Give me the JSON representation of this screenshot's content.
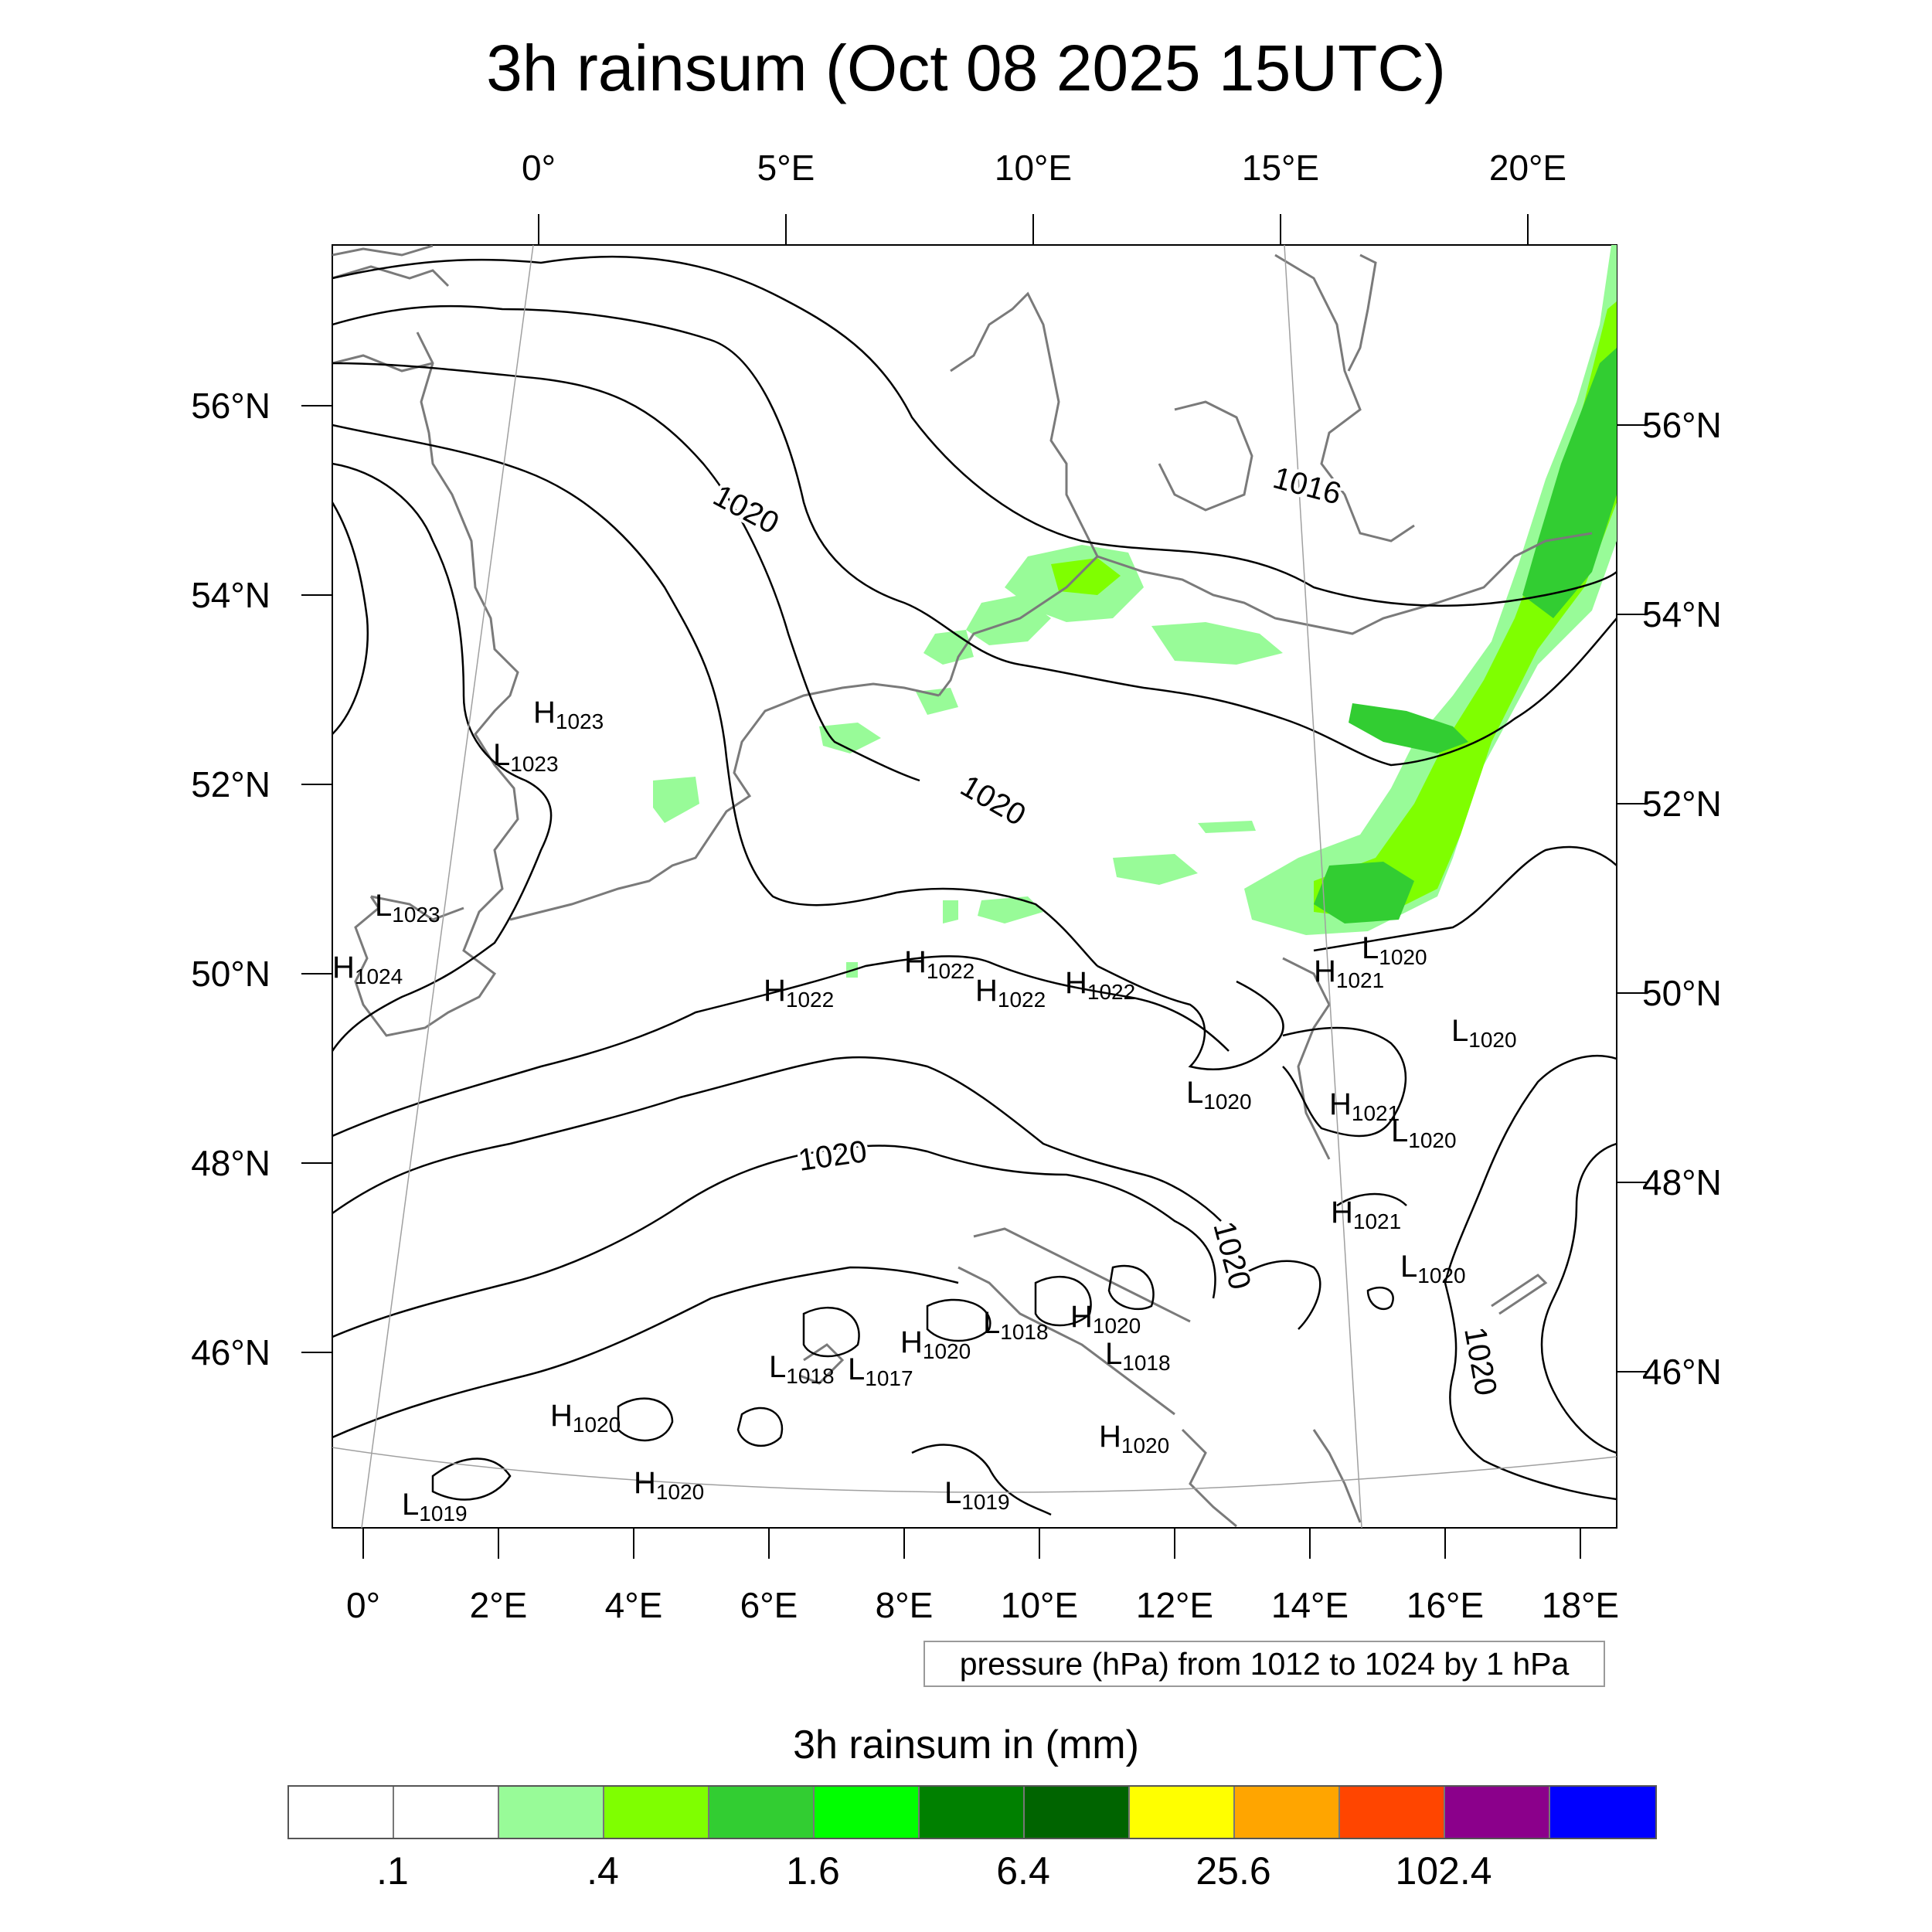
{
  "title": "3h rainsum (Oct 08 2025 15UTC)",
  "axes": {
    "top_lon": [
      "0°",
      "5°E",
      "10°E",
      "15°E",
      "20°E"
    ],
    "left_lat": [
      "56°N",
      "54°N",
      "52°N",
      "50°N",
      "48°N",
      "46°N"
    ],
    "right_lat": [
      "56°N",
      "54°N",
      "52°N",
      "50°N",
      "48°N",
      "46°N"
    ],
    "bottom_lon": [
      "0°",
      "2°E",
      "4°E",
      "6°E",
      "8°E",
      "10°E",
      "12°E",
      "14°E",
      "16°E",
      "18°E"
    ]
  },
  "pressure_note": "pressure (hPa) from 1012 to 1024 by 1 hPa",
  "isobar_labels": [
    "1020",
    "1016",
    "1020",
    "1020",
    "1020",
    "1020"
  ],
  "pressure_centers": [
    {
      "type": "H",
      "value": "1023"
    },
    {
      "type": "L",
      "value": "1023"
    },
    {
      "type": "L",
      "value": "1023"
    },
    {
      "type": "H",
      "value": "1024"
    },
    {
      "type": "H",
      "value": "1022"
    },
    {
      "type": "H",
      "value": "1022"
    },
    {
      "type": "H",
      "value": "1022"
    },
    {
      "type": "H",
      "value": "1022"
    },
    {
      "type": "L",
      "value": "1020"
    },
    {
      "type": "H",
      "value": "1021"
    },
    {
      "type": "L",
      "value": "1020"
    },
    {
      "type": "L",
      "value": "1020"
    },
    {
      "type": "H",
      "value": "1021"
    },
    {
      "type": "L",
      "value": "1020"
    },
    {
      "type": "H",
      "value": "1021"
    },
    {
      "type": "L",
      "value": "1020"
    },
    {
      "type": "L",
      "value": "1018"
    },
    {
      "type": "H",
      "value": "1020"
    },
    {
      "type": "L",
      "value": "1018"
    },
    {
      "type": "H",
      "value": "1020"
    },
    {
      "type": "L",
      "value": "1018"
    },
    {
      "type": "L",
      "value": "1017"
    },
    {
      "type": "H",
      "value": "1020"
    },
    {
      "type": "H",
      "value": "1020"
    },
    {
      "type": "H",
      "value": "1020"
    },
    {
      "type": "L",
      "value": "1019"
    },
    {
      "type": "L",
      "value": "1019"
    }
  ],
  "colorbar": {
    "title": "3h rainsum in (mm)",
    "colors": [
      "#ffffff",
      "#ffffff",
      "#98fb98",
      "#7fff00",
      "#32cd32",
      "#00ff00",
      "#008000",
      "#006400",
      "#ffff00",
      "#ffa500",
      "#ff4500",
      "#8b008b",
      "#0000ff"
    ],
    "labels": [
      ".1",
      ".4",
      "1.6",
      "6.4",
      "25.6",
      "102.4"
    ]
  }
}
